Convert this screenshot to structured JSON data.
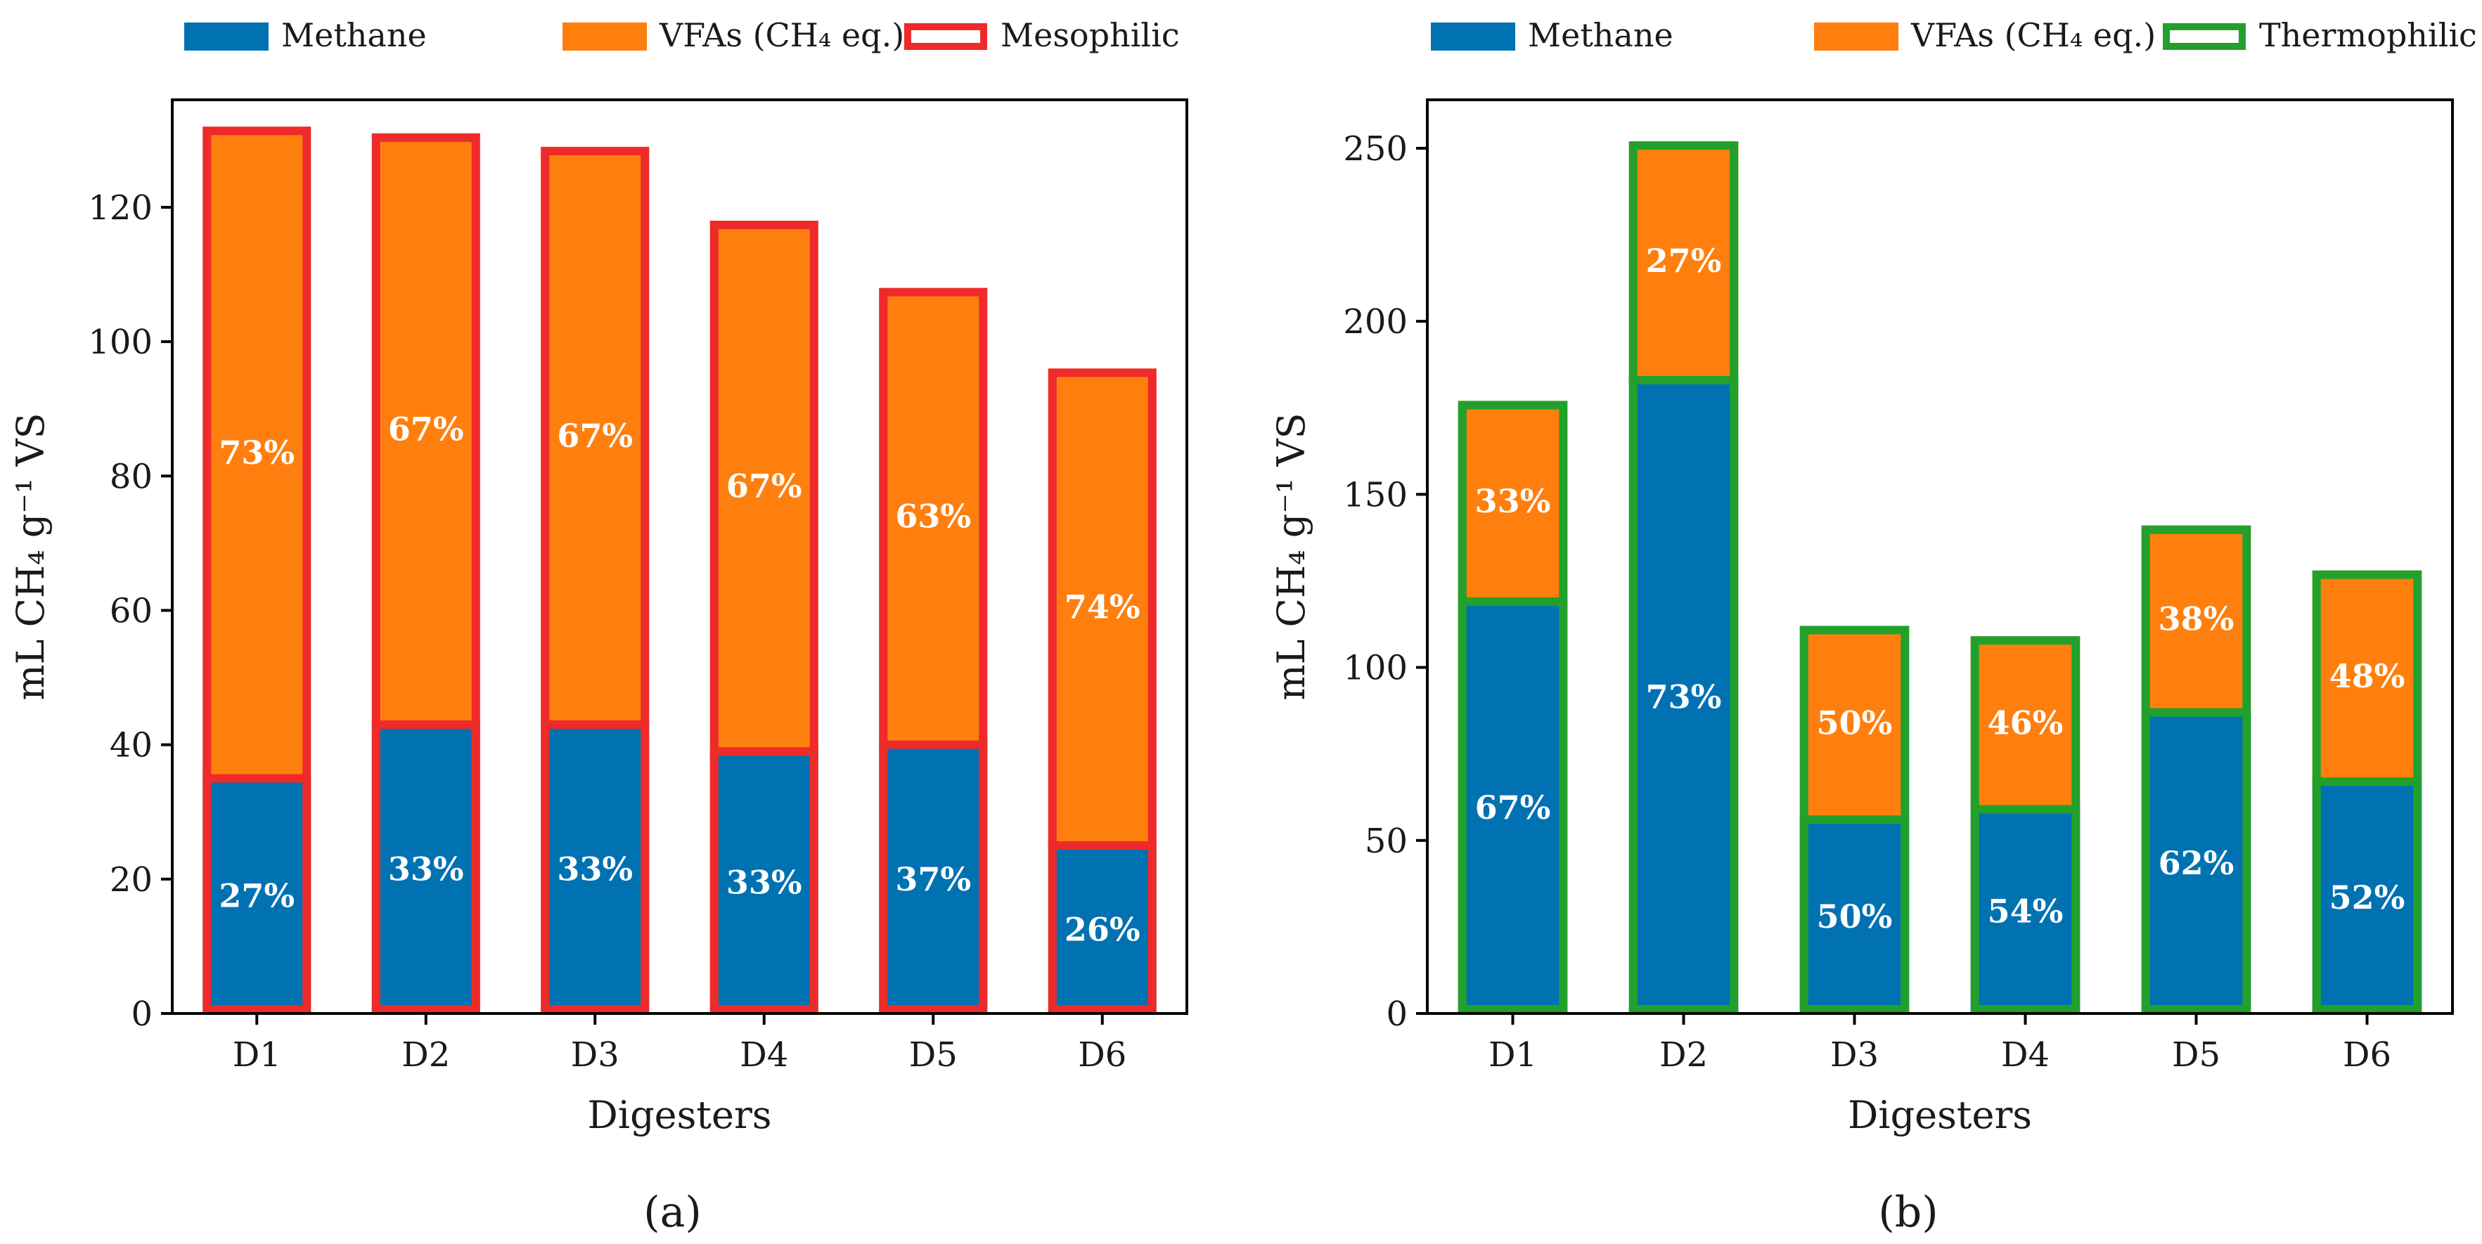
{
  "chart_data": [
    {
      "type": "bar",
      "stacked": true,
      "panel_label": "(a)",
      "categories": [
        "D1",
        "D2",
        "D3",
        "D4",
        "D5",
        "D6"
      ],
      "series": [
        {
          "name": "Methane",
          "values": [
            35,
            43,
            43,
            39,
            40,
            25
          ],
          "percent_labels": [
            "27%",
            "33%",
            "33%",
            "33%",
            "37%",
            "26%"
          ],
          "color": "#0072b2"
        },
        {
          "name": "VFAs (CH₄ eq.)",
          "values": [
            97,
            88,
            86,
            79,
            68,
            71
          ],
          "percent_labels": [
            "73%",
            "67%",
            "67%",
            "67%",
            "63%",
            "74%"
          ],
          "color": "#ff7f0e"
        }
      ],
      "outline": {
        "name": "Mesophilic",
        "color": "#ee2a2a"
      },
      "xlabel": "Digesters",
      "ylabel": "mL CH₄ g⁻¹ VS",
      "ylim": [
        0,
        136
      ],
      "yticks": [
        0,
        20,
        40,
        60,
        80,
        100,
        120
      ],
      "grid": false,
      "legend_position": "top"
    },
    {
      "type": "bar",
      "stacked": true,
      "panel_label": "(b)",
      "categories": [
        "D1",
        "D2",
        "D3",
        "D4",
        "D5",
        "D6"
      ],
      "series": [
        {
          "name": "Methane",
          "values": [
            119,
            183,
            56,
            59,
            87,
            67
          ],
          "percent_labels": [
            "67%",
            "73%",
            "50%",
            "54%",
            "62%",
            "52%"
          ],
          "color": "#0072b2"
        },
        {
          "name": "VFAs (CH₄ eq.)",
          "values": [
            58,
            69,
            56,
            50,
            54,
            61
          ],
          "percent_labels": [
            "33%",
            "27%",
            "50%",
            "46%",
            "38%",
            "48%"
          ],
          "color": "#ff7f0e"
        }
      ],
      "outline": {
        "name": "Thermophilic",
        "color": "#22a02c"
      },
      "xlabel": "Digesters",
      "ylabel": "mL CH₄ g⁻¹ VS",
      "ylim": [
        0,
        264
      ],
      "yticks": [
        0,
        50,
        100,
        150,
        200,
        250
      ],
      "grid": false,
      "legend_position": "top"
    }
  ]
}
